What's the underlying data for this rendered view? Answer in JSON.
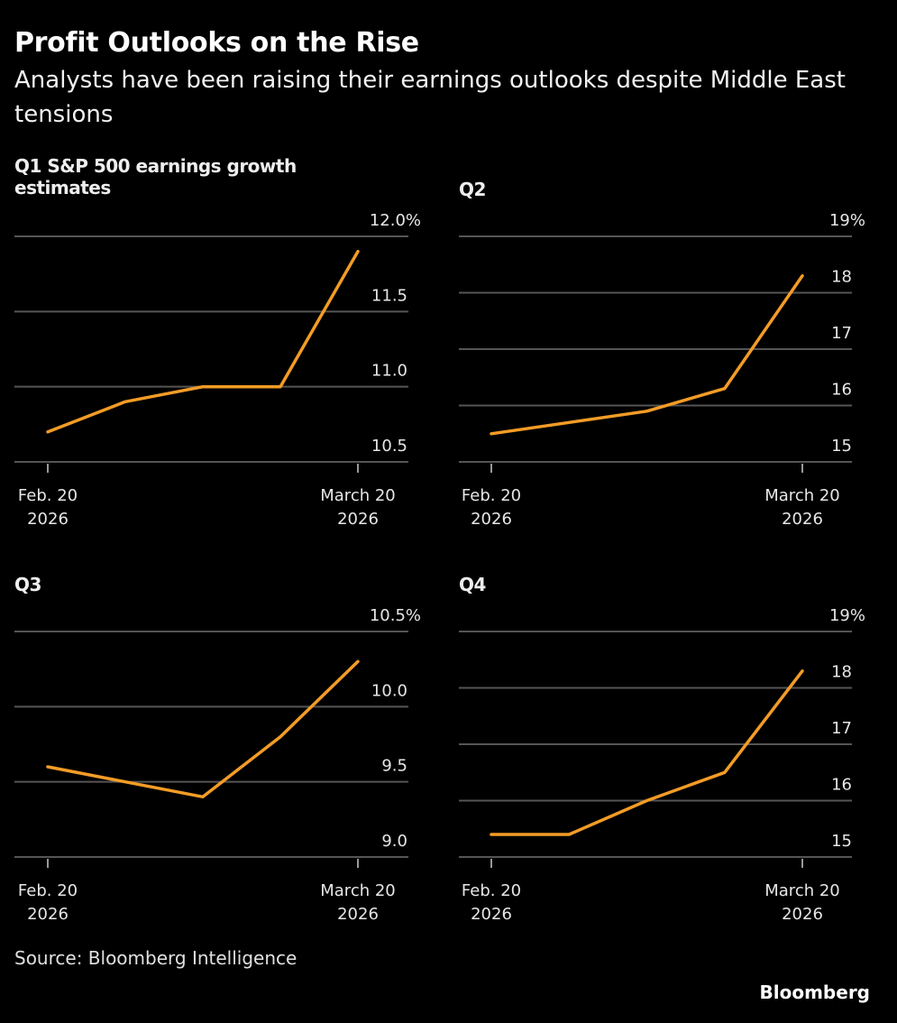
{
  "header": {
    "title": "Profit Outlooks on the Rise",
    "subtitle": "Analysts have been raising their earnings outlooks despite Middle East tensions"
  },
  "footer": {
    "source": "Source: Bloomberg Intelligence",
    "brand": "Bloomberg"
  },
  "colors": {
    "line": "#f39c26",
    "grid": "#555555",
    "background": "#000000"
  },
  "chart_data": [
    {
      "type": "line",
      "title": "Q1 S&P 500 earnings growth estimates",
      "x": [
        "Feb. 20 2026",
        "",
        "",
        "",
        "March 20 2026"
      ],
      "x_tick_labels": [
        [
          "Feb. 20",
          "2026"
        ],
        [
          "March 20",
          "2026"
        ]
      ],
      "series": [
        {
          "name": "Q1",
          "values": [
            10.7,
            10.9,
            11.0,
            11.0,
            11.9
          ]
        }
      ],
      "ylim": [
        10.5,
        12.0
      ],
      "yticks": [
        10.5,
        11.0,
        11.5,
        12.0
      ],
      "ytick_labels": [
        "10.5",
        "11.0",
        "11.5",
        "12.0%"
      ],
      "grid": true
    },
    {
      "type": "line",
      "title": "Q2",
      "x": [
        "Feb. 20 2026",
        "",
        "",
        "",
        "March 20 2026"
      ],
      "x_tick_labels": [
        [
          "Feb. 20",
          "2026"
        ],
        [
          "March 20",
          "2026"
        ]
      ],
      "series": [
        {
          "name": "Q2",
          "values": [
            15.5,
            15.7,
            15.9,
            16.3,
            18.3
          ]
        }
      ],
      "ylim": [
        15,
        19
      ],
      "yticks": [
        15,
        16,
        17,
        18,
        19
      ],
      "ytick_labels": [
        "15",
        "16",
        "17",
        "18",
        "19%"
      ],
      "grid": true
    },
    {
      "type": "line",
      "title": "Q3",
      "x": [
        "Feb. 20 2026",
        "",
        "",
        "",
        "March 20 2026"
      ],
      "x_tick_labels": [
        [
          "Feb. 20",
          "2026"
        ],
        [
          "March 20",
          "2026"
        ]
      ],
      "series": [
        {
          "name": "Q3",
          "values": [
            9.6,
            9.5,
            9.4,
            9.8,
            10.3
          ]
        }
      ],
      "ylim": [
        9.0,
        10.5
      ],
      "yticks": [
        9.0,
        9.5,
        10.0,
        10.5
      ],
      "ytick_labels": [
        "9.0",
        "9.5",
        "10.0",
        "10.5%"
      ],
      "grid": true
    },
    {
      "type": "line",
      "title": "Q4",
      "x": [
        "Feb. 20 2026",
        "",
        "",
        "",
        "March 20 2026"
      ],
      "x_tick_labels": [
        [
          "Feb. 20",
          "2026"
        ],
        [
          "March 20",
          "2026"
        ]
      ],
      "series": [
        {
          "name": "Q4",
          "values": [
            15.4,
            15.4,
            16.0,
            16.5,
            18.3
          ]
        }
      ],
      "ylim": [
        15,
        19
      ],
      "yticks": [
        15,
        16,
        17,
        18,
        19
      ],
      "ytick_labels": [
        "15",
        "16",
        "17",
        "18",
        "19%"
      ],
      "grid": true
    }
  ]
}
